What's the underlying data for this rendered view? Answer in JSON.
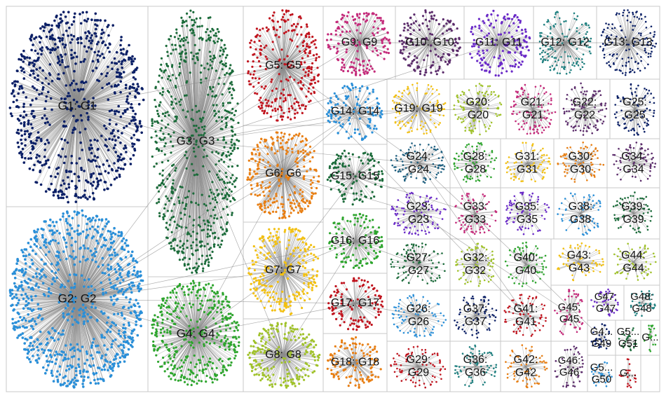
{
  "groups": [
    {
      "id": "G1",
      "label": "G1: G1",
      "color": "#0a1f66"
    },
    {
      "id": "G2",
      "label": "G2: G2",
      "color": "#2a8fd8"
    },
    {
      "id": "G3",
      "label": "G3: G3",
      "color": "#1b6b3a"
    },
    {
      "id": "G4",
      "label": "G4: G4",
      "color": "#2da52d"
    },
    {
      "id": "G5",
      "label": "G5: G5",
      "color": "#c0141e"
    },
    {
      "id": "G6",
      "label": "G6: G6",
      "color": "#e87e12"
    },
    {
      "id": "G7",
      "label": "G7: G7",
      "color": "#f2c012"
    },
    {
      "id": "G8",
      "label": "G8: G8",
      "color": "#a0c22a"
    },
    {
      "id": "G9",
      "label": "G9: G9",
      "color": "#c42a7a"
    },
    {
      "id": "G10",
      "label": "G10: G10",
      "color": "#5a2a6a"
    },
    {
      "id": "G11",
      "label": "G11: G11",
      "color": "#6a2ac8"
    },
    {
      "id": "G12",
      "label": "G12: G12",
      "color": "#1f8080"
    },
    {
      "id": "G13",
      "label": "G13: G13",
      "color": "#0a1f66"
    },
    {
      "id": "G14",
      "label": "G14: G14",
      "color": "#2a8fd8"
    },
    {
      "id": "G15",
      "label": "G15: G15",
      "color": "#1b6b3a"
    },
    {
      "id": "G16",
      "label": "G16: G16",
      "color": "#2da52d"
    },
    {
      "id": "G17",
      "label": "G17: G17",
      "color": "#c0141e"
    },
    {
      "id": "G18",
      "label": "G18: G18",
      "color": "#e87e12"
    },
    {
      "id": "G19",
      "label": "G19: G19",
      "color": "#f2c012"
    },
    {
      "id": "G20",
      "label": "G20: G20",
      "color": "#a0c22a"
    },
    {
      "id": "G21",
      "label": "G21: G21",
      "color": "#c42a7a"
    },
    {
      "id": "G22",
      "label": "G22: G22",
      "color": "#5a2a6a"
    },
    {
      "id": "G23",
      "label": "G23: G23",
      "color": "#6a2ac8"
    },
    {
      "id": "G24",
      "label": "G24: G24",
      "color": "#1f6080"
    },
    {
      "id": "G25",
      "label": "G25: G25",
      "color": "#0a1f66"
    },
    {
      "id": "G26",
      "label": "G26: G26",
      "color": "#2a8fd8"
    },
    {
      "id": "G27",
      "label": "G27: G27",
      "color": "#1b6b3a"
    },
    {
      "id": "G28",
      "label": "G28: G28",
      "color": "#2da52d"
    },
    {
      "id": "G29",
      "label": "G29: G29",
      "color": "#c0141e"
    },
    {
      "id": "G30",
      "label": "G30: G30",
      "color": "#e87e12"
    },
    {
      "id": "G31",
      "label": "G31: G31",
      "color": "#f2c012"
    },
    {
      "id": "G32",
      "label": "G32: G32",
      "color": "#a0c22a"
    },
    {
      "id": "G33",
      "label": "G33: G33",
      "color": "#c42a7a"
    },
    {
      "id": "G34",
      "label": "G34: G34",
      "color": "#5a2a6a"
    },
    {
      "id": "G35",
      "label": "G35: G35",
      "color": "#6a2ac8"
    },
    {
      "id": "G36",
      "label": "G36: G36",
      "color": "#1f8080"
    },
    {
      "id": "G37",
      "label": "G37: G37",
      "color": "#0a1f66"
    },
    {
      "id": "G38",
      "label": "G38: G38",
      "color": "#2a8fd8"
    },
    {
      "id": "G39",
      "label": "G39: G39",
      "color": "#1b6b3a"
    },
    {
      "id": "G40",
      "label": "G40: G40",
      "color": "#2da52d"
    },
    {
      "id": "G41",
      "label": "G41: G41",
      "color": "#c0141e"
    },
    {
      "id": "G42",
      "label": "G42: G42",
      "color": "#e87e12"
    },
    {
      "id": "G43",
      "label": "G43: G43",
      "color": "#f2c012"
    },
    {
      "id": "G44",
      "label": "G44: G44",
      "color": "#a0c22a"
    },
    {
      "id": "G45",
      "label": "G45: G45",
      "color": "#c42a7a"
    },
    {
      "id": "G46",
      "label": "G46: G46",
      "color": "#5a2a6a"
    },
    {
      "id": "G47",
      "label": "G47: G47",
      "color": "#6a2ac8"
    },
    {
      "id": "G48",
      "label": "G48: G48",
      "color": "#1f8080"
    },
    {
      "id": "G49",
      "label": "G4... G49",
      "color": "#0a1f66"
    },
    {
      "id": "G50",
      "label": "G5... G50",
      "color": "#2a8fd8"
    },
    {
      "id": "G51",
      "label": "G5... G51",
      "color": "#1b6b3a"
    },
    {
      "id": "G52",
      "label": "G...",
      "color": "#2da52d"
    },
    {
      "id": "G53",
      "label": "G...",
      "color": "#c0141e"
    }
  ],
  "edge_color": "#8c8c8c",
  "frame_color": "#c8c8c8",
  "background": "#ffffff"
}
